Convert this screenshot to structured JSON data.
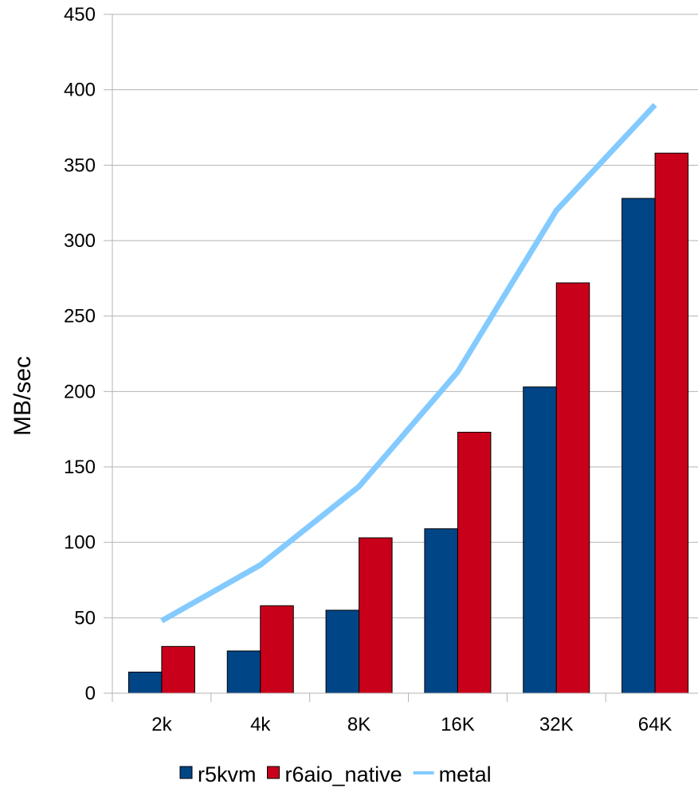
{
  "chart_data": {
    "type": "bar",
    "title": "",
    "xlabel": "",
    "ylabel": "MB/sec",
    "ylim": [
      0,
      450
    ],
    "yticks": [
      0,
      50,
      100,
      150,
      200,
      250,
      300,
      350,
      400,
      450
    ],
    "grid": true,
    "legend_position": "bottom",
    "categories": [
      "2k",
      "4k",
      "8K",
      "16K",
      "32K",
      "64K"
    ],
    "series": [
      {
        "name": "r5kvm",
        "kind": "bar",
        "color": "#004586",
        "values": [
          14,
          28,
          55,
          109,
          203,
          328
        ]
      },
      {
        "name": "r6aio_native",
        "kind": "bar",
        "color": "#c9001a",
        "values": [
          31,
          58,
          103,
          173,
          272,
          358
        ]
      },
      {
        "name": "metal",
        "kind": "line",
        "color": "#83caff",
        "values": [
          48,
          85,
          137,
          213,
          320,
          390
        ]
      }
    ]
  }
}
